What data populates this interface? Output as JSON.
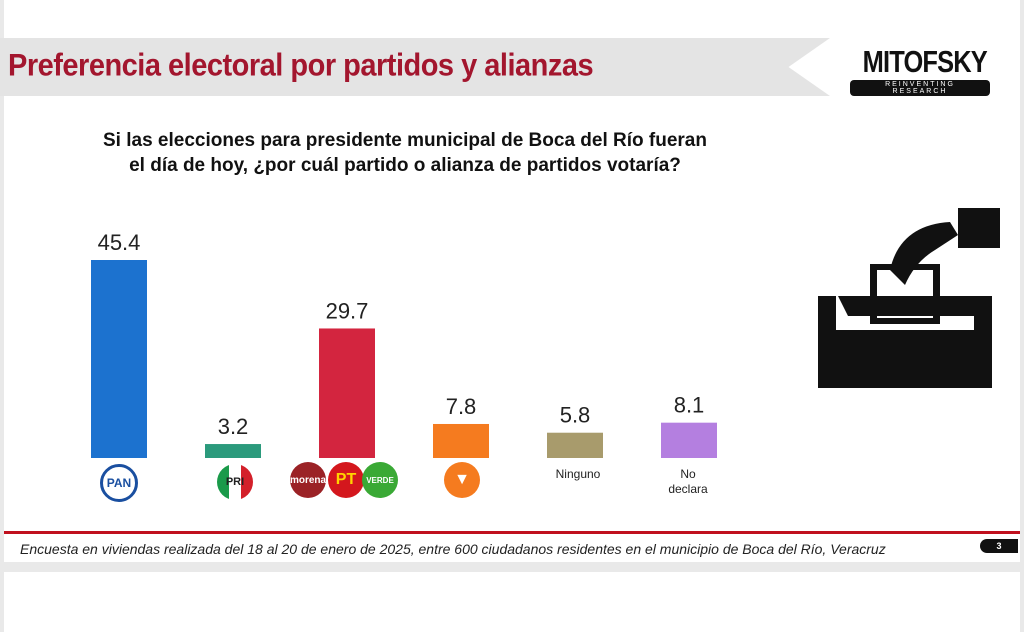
{
  "header": {
    "title": "Preferencia electoral por partidos y alianzas",
    "logo": "MITOFSKY",
    "logo_tagline": "REINVENTING RESEARCH"
  },
  "chart_data": {
    "type": "bar",
    "title": "Si las elecciones para presidente municipal de Boca del Río fueran el día de hoy, ¿por cuál partido o alianza de partidos votaría?",
    "categories": [
      "PAN",
      "PRI",
      "MORENA-PT-VERDE",
      "MC",
      "Ninguno",
      "No declara"
    ],
    "values": [
      45.4,
      3.2,
      29.7,
      7.8,
      5.8,
      8.1
    ],
    "colors": [
      "#1c72cf",
      "#2b9a7c",
      "#d3253f",
      "#f57b1f",
      "#a89b6c",
      "#b47fe0"
    ],
    "ylim": [
      0,
      50
    ],
    "grid": false,
    "category_text": {
      "ninguno": "Ninguno",
      "no_declara": "No declara"
    },
    "logo_labels": {
      "pan": "PAN",
      "pri": "PRI",
      "morena": "morena",
      "pt": "PT",
      "verde": "VERDE"
    }
  },
  "footer": {
    "note": "Encuesta en viviendas realizada del 18 al 20 de enero de 2025, entre 600 ciudadanos residentes en el municipio de Boca del Río, Veracruz",
    "page": "3"
  },
  "icons": {
    "ballot": "ballot-box-icon"
  }
}
